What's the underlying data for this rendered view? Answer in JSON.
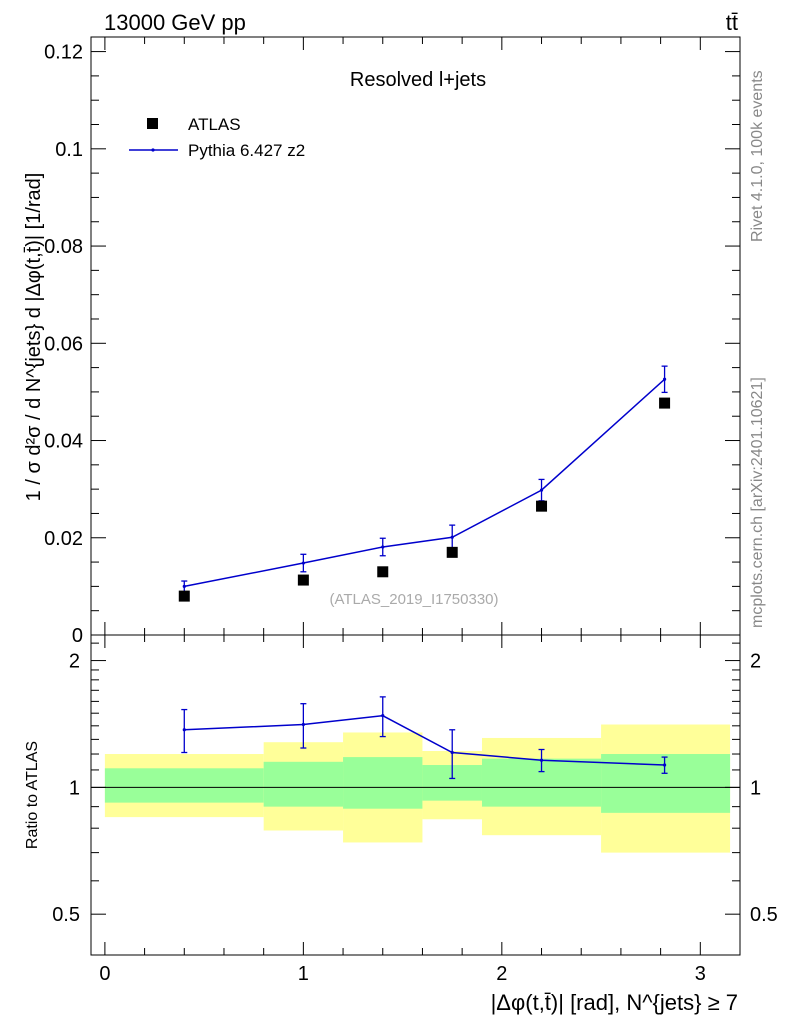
{
  "header": {
    "left_label": "13000 GeV pp",
    "right_label": "tt̄"
  },
  "side_labels": {
    "rivet": "Rivet 4.1.0,  100k events",
    "mcplots": "mcplots.cern.ch [arXiv:2401.10621]"
  },
  "chart_data": [
    {
      "id": "main",
      "type": "line",
      "title": "Resolved l+jets",
      "watermark": "(ATLAS_2019_I1750330)",
      "ylabel": "1 / σ d²σ / d N^{jets} d |Δφ(t,t̄)| [1/rad]",
      "xlim": [
        -0.07,
        3.2
      ],
      "ylim": [
        0,
        0.123
      ],
      "yticks": [
        0,
        0.02,
        0.04,
        0.06,
        0.08,
        0.1,
        0.12
      ],
      "ytick_labels": [
        "0",
        "0.02",
        "0.04",
        "0.06",
        "0.08",
        "0.1",
        "0.12"
      ],
      "legend": [
        "ATLAS",
        "Pythia 6.427 z2"
      ],
      "series": [
        {
          "name": "ATLAS",
          "style": "markers",
          "color": "#000000",
          "x": [
            0.4,
            1.0,
            1.4,
            1.75,
            2.2,
            2.82
          ],
          "y": [
            0.008,
            0.0113,
            0.013,
            0.017,
            0.0265,
            0.0477
          ]
        },
        {
          "name": "Pythia 6.427 z2",
          "style": "line",
          "color": "#0000cc",
          "x": [
            0.4,
            1.0,
            1.4,
            1.75,
            2.2,
            2.82
          ],
          "y": [
            0.01,
            0.0148,
            0.0181,
            0.0201,
            0.0298,
            0.0526
          ],
          "err": [
            0.0011,
            0.0018,
            0.0018,
            0.0025,
            0.0022,
            0.0027
          ]
        }
      ]
    },
    {
      "id": "ratio",
      "type": "line",
      "ylabel": "Ratio to ATLAS",
      "xlabel": "|Δφ(t,t̄)| [rad], N^{jets} ≥ 7",
      "xlim": [
        -0.07,
        3.2
      ],
      "ylim": [
        0.4,
        2.3
      ],
      "yscale": "log",
      "yticks": [
        0.5,
        1,
        2
      ],
      "ytick_labels": [
        "0.5",
        "1",
        "2"
      ],
      "xticks": [
        0,
        1,
        2,
        3
      ],
      "xtick_labels": [
        "0",
        "1",
        "2",
        "3"
      ],
      "bands": [
        {
          "x0": 0.0,
          "x1": 0.8,
          "inner": [
            0.92,
            1.11
          ],
          "outer": [
            0.85,
            1.2
          ]
        },
        {
          "x0": 0.8,
          "x1": 1.2,
          "inner": [
            0.9,
            1.15
          ],
          "outer": [
            0.79,
            1.28
          ]
        },
        {
          "x0": 1.2,
          "x1": 1.6,
          "inner": [
            0.89,
            1.18
          ],
          "outer": [
            0.74,
            1.35
          ]
        },
        {
          "x0": 1.6,
          "x1": 1.9,
          "inner": [
            0.93,
            1.13
          ],
          "outer": [
            0.84,
            1.22
          ]
        },
        {
          "x0": 1.9,
          "x1": 2.5,
          "inner": [
            0.9,
            1.17
          ],
          "outer": [
            0.77,
            1.31
          ]
        },
        {
          "x0": 2.5,
          "x1": 3.15,
          "inner": [
            0.87,
            1.2
          ],
          "outer": [
            0.7,
            1.41
          ]
        }
      ],
      "series": [
        {
          "name": "Pythia 6.427 z2 / ATLAS",
          "color": "#0000cc",
          "x": [
            0.4,
            1.0,
            1.4,
            1.75,
            2.2,
            2.82
          ],
          "y": [
            1.37,
            1.41,
            1.48,
            1.21,
            1.16,
            1.13
          ],
          "err": [
            0.16,
            0.17,
            0.16,
            0.16,
            0.07,
            0.05
          ]
        }
      ]
    }
  ]
}
